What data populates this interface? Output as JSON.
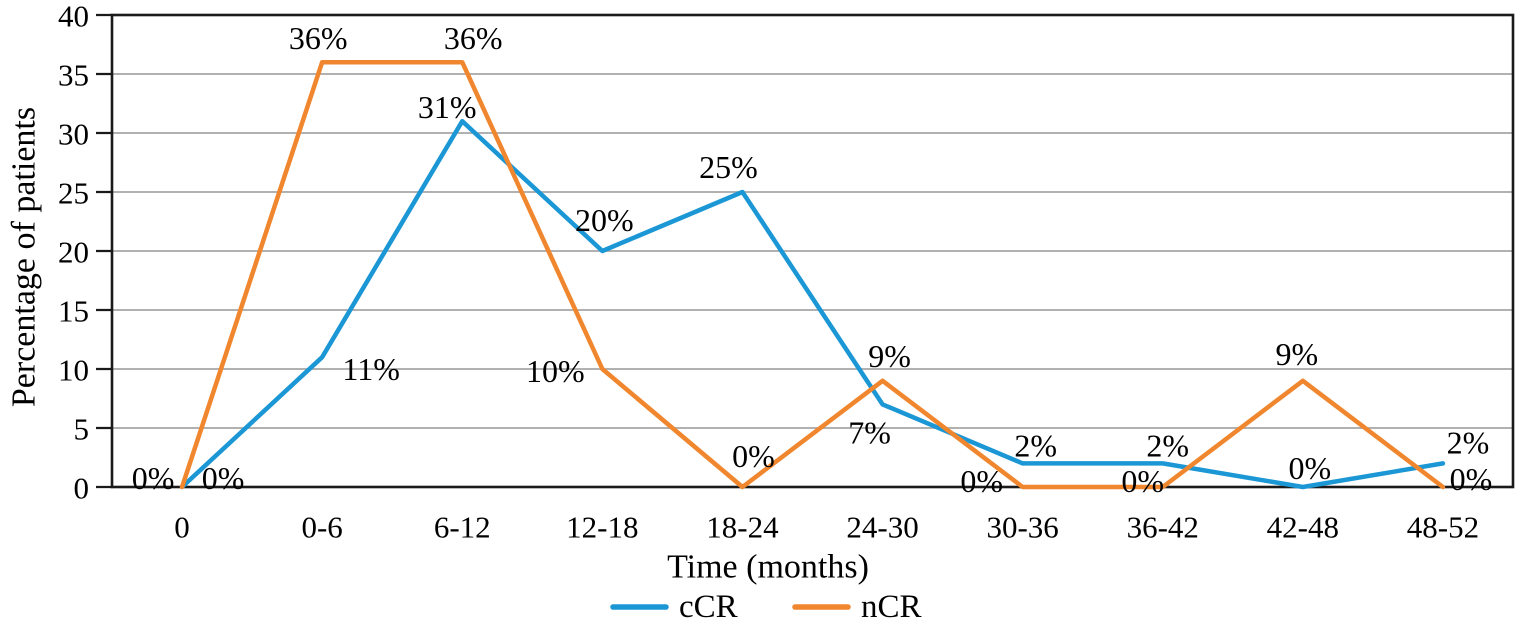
{
  "chart_data": {
    "type": "line",
    "title": "",
    "xlabel": "Time (months)",
    "ylabel": "Percentage of patients",
    "categories": [
      "0",
      "0-6",
      "6-12",
      "12-18",
      "18-24",
      "24-30",
      "30-36",
      "36-42",
      "42-48",
      "48-52"
    ],
    "ylim": [
      0,
      40
    ],
    "yticks": [
      0,
      5,
      10,
      15,
      20,
      25,
      30,
      35,
      40
    ],
    "grid": true,
    "legend_position": "bottom-center",
    "axis_color": "#1a1a1a",
    "grid_color": "#a6a6a6",
    "text_color": "#000000",
    "series": [
      {
        "name": "cCR",
        "color": "#1b97d5",
        "values": [
          0,
          11,
          31,
          20,
          25,
          7,
          2,
          2,
          0,
          2
        ],
        "labels": [
          "0%",
          "11%",
          "31%",
          "20%",
          "25%",
          "7%",
          "2%",
          "2%",
          "0%",
          "2%"
        ],
        "label_offsets": [
          [
            -29,
            -9
          ],
          [
            49,
            12
          ],
          [
            -15,
            -14
          ],
          [
            2,
            -31
          ],
          [
            -14,
            -25
          ],
          [
            -13,
            28
          ],
          [
            13,
            -18
          ],
          [
            5,
            -18
          ],
          [
            7,
            -19
          ],
          [
            25,
            -21
          ]
        ]
      },
      {
        "name": "nCR",
        "color": "#f0862d",
        "values": [
          0,
          36,
          36,
          10,
          0,
          9,
          0,
          0,
          9,
          0
        ],
        "labels": [
          "0%",
          "36%",
          "36%",
          "10%",
          "0%",
          "9%",
          "0%",
          "0%",
          "9%",
          "0%"
        ],
        "label_offsets": [
          [
            41,
            -9
          ],
          [
            -4,
            -24
          ],
          [
            11,
            -24
          ],
          [
            -47,
            2
          ],
          [
            11,
            -31
          ],
          [
            7,
            -25
          ],
          [
            -41,
            -6
          ],
          [
            -20,
            -6
          ],
          [
            -6,
            -27
          ],
          [
            28,
            -8
          ]
        ]
      }
    ]
  }
}
